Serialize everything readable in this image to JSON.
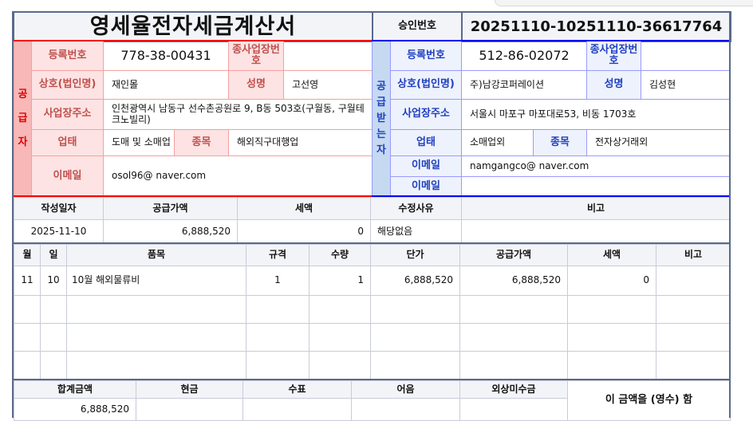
{
  "title": "영세율전자세금계산서",
  "approval": {
    "label": "승인번호",
    "value": "20251110-10251110-36617764"
  },
  "supplier": {
    "side_label": "공급자",
    "labels": {
      "reg_no": "등록번호",
      "sub_no": "종사업장번호",
      "name": "상호(법인명)",
      "rep": "성명",
      "address": "사업장주소",
      "type": "업태",
      "item": "종목",
      "email": "이메일"
    },
    "reg_no": "778-38-00431",
    "sub_no": "",
    "name": "재인몰",
    "rep": "고선영",
    "address": "인천광역시 남동구 선수촌공원로 9, B동 503호(구월동, 구월테크노빌리)",
    "type": "도매 및 소매업",
    "item": "해외직구대행업",
    "email": "osol96@ naver.com"
  },
  "receiver": {
    "side_label": "공급받는자",
    "labels": {
      "reg_no": "등록번호",
      "sub_no": "종사업장번호",
      "name": "상호(법인명)",
      "rep": "성명",
      "address": "사업장주소",
      "type": "업태",
      "item": "종목",
      "email": "이메일",
      "email2": "이메일"
    },
    "reg_no": "512-86-02072",
    "sub_no": "",
    "name": "주)남강코퍼레이션",
    "rep": "김성현",
    "address": "서울시 마포구 마포대로53, 비동 1703호",
    "type": "소매업외",
    "item": "전자상거래외",
    "email": "namgangco@ naver.com",
    "email2": ""
  },
  "summary": {
    "headers": [
      "작성일자",
      "공급가액",
      "세액",
      "수정사유",
      "비고"
    ],
    "values": [
      "2025-11-10",
      "6,888,520",
      "0",
      "해당없음",
      ""
    ]
  },
  "items": {
    "headers": [
      "월",
      "일",
      "품목",
      "규격",
      "수량",
      "단가",
      "공급가액",
      "세액",
      "비고"
    ],
    "rows": [
      [
        "11",
        "10",
        "10월 해외물류비",
        "1",
        "1",
        "6,888,520",
        "6,888,520",
        "0",
        ""
      ]
    ]
  },
  "totals": {
    "headers": [
      "합계금액",
      "현금",
      "수표",
      "어음",
      "외상미수금"
    ],
    "values": [
      "6,888,520",
      "",
      "",
      "",
      ""
    ],
    "receipt": "이 금액을 (영수) 함"
  },
  "colors": {
    "supplier": "#ff0000",
    "receiver": "#0000ff",
    "frame": "#5a6a8a"
  }
}
